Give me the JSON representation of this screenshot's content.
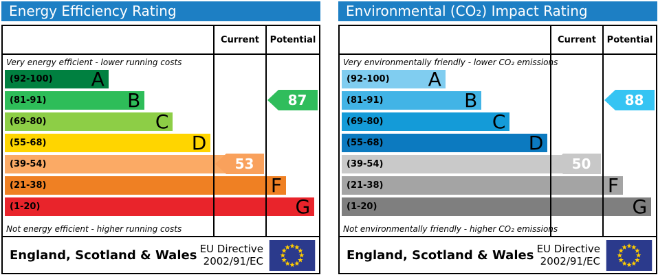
{
  "panels": [
    {
      "title": "Energy Efficiency Rating",
      "header_bg": "#1d7fc4",
      "columns": {
        "current": "Current",
        "potential": "Potential"
      },
      "top_label": "Very energy efficient - lower running costs",
      "bottom_label": "Not energy efficient - higher running costs",
      "bands": [
        {
          "range": "(92-100)",
          "letter": "A",
          "color": "#008040",
          "width_pct": 33
        },
        {
          "range": "(81-91)",
          "letter": "B",
          "color": "#2ebd59",
          "width_pct": 44.5
        },
        {
          "range": "(69-80)",
          "letter": "C",
          "color": "#8dce46",
          "width_pct": 53.5
        },
        {
          "range": "(55-68)",
          "letter": "D",
          "color": "#ffd500",
          "width_pct": 65.5
        },
        {
          "range": "(39-54)",
          "letter": "E",
          "color": "#fbaa65",
          "width_pct": 78
        },
        {
          "range": "(21-38)",
          "letter": "F",
          "color": "#ef8023",
          "width_pct": 89.5
        },
        {
          "range": "(1-20)",
          "letter": "G",
          "color": "#e9242b",
          "width_pct": 98.5
        }
      ],
      "current": {
        "value": "53",
        "band_index": 4,
        "color": "#f9a15c"
      },
      "potential": {
        "value": "87",
        "band_index": 1,
        "color": "#30bd5c"
      },
      "footer": {
        "region": "England, Scotland & Wales",
        "directive_line1": "EU Directive",
        "directive_line2": "2002/91/EC"
      }
    },
    {
      "title": "Environmental (CO₂) Impact Rating",
      "header_bg": "#1d7fc4",
      "columns": {
        "current": "Current",
        "potential": "Potential"
      },
      "top_label": "Very environmentally friendly - lower CO₂ emissions",
      "bottom_label": "Not environmentally friendly - higher CO₂ emissions",
      "bands": [
        {
          "range": "(92-100)",
          "letter": "A",
          "color": "#80cdf0",
          "width_pct": 33
        },
        {
          "range": "(81-91)",
          "letter": "B",
          "color": "#42b4e6",
          "width_pct": 44.5
        },
        {
          "range": "(69-80)",
          "letter": "C",
          "color": "#149bd8",
          "width_pct": 53.5
        },
        {
          "range": "(55-68)",
          "letter": "D",
          "color": "#0c7ac0",
          "width_pct": 65.5
        },
        {
          "range": "(39-54)",
          "letter": "E",
          "color": "#c9c9c9",
          "width_pct": 78
        },
        {
          "range": "(21-38)",
          "letter": "F",
          "color": "#a4a4a4",
          "width_pct": 89.5
        },
        {
          "range": "(1-20)",
          "letter": "G",
          "color": "#7f7f7f",
          "width_pct": 98.5
        }
      ],
      "current": {
        "value": "50",
        "band_index": 4,
        "color": "#c8c8c8"
      },
      "potential": {
        "value": "88",
        "band_index": 1,
        "color": "#35c4f3"
      },
      "footer": {
        "region": "England, Scotland & Wales",
        "directive_line1": "EU Directive",
        "directive_line2": "2002/91/EC"
      }
    }
  ],
  "flag": {
    "blue": "#2b3a8c",
    "star_yellow": "#ffcc00"
  },
  "chart_data": [
    {
      "type": "bar",
      "title": "Energy Efficiency Rating",
      "bands": [
        {
          "band": "A",
          "range": [
            92,
            100
          ]
        },
        {
          "band": "B",
          "range": [
            81,
            91
          ]
        },
        {
          "band": "C",
          "range": [
            69,
            80
          ]
        },
        {
          "band": "D",
          "range": [
            55,
            68
          ]
        },
        {
          "band": "E",
          "range": [
            39,
            54
          ]
        },
        {
          "band": "F",
          "range": [
            21,
            38
          ]
        },
        {
          "band": "G",
          "range": [
            1,
            20
          ]
        }
      ],
      "series": [
        {
          "name": "Current",
          "value": 53,
          "band": "E"
        },
        {
          "name": "Potential",
          "value": 87,
          "band": "B"
        }
      ],
      "top_annotation": "Very energy efficient - lower running costs",
      "bottom_annotation": "Not energy efficient - higher running costs"
    },
    {
      "type": "bar",
      "title": "Environmental (CO₂) Impact Rating",
      "bands": [
        {
          "band": "A",
          "range": [
            92,
            100
          ]
        },
        {
          "band": "B",
          "range": [
            81,
            91
          ]
        },
        {
          "band": "C",
          "range": [
            69,
            80
          ]
        },
        {
          "band": "D",
          "range": [
            55,
            68
          ]
        },
        {
          "band": "E",
          "range": [
            39,
            54
          ]
        },
        {
          "band": "F",
          "range": [
            21,
            38
          ]
        },
        {
          "band": "G",
          "range": [
            1,
            20
          ]
        }
      ],
      "series": [
        {
          "name": "Current",
          "value": 50,
          "band": "E"
        },
        {
          "name": "Potential",
          "value": 88,
          "band": "B"
        }
      ],
      "top_annotation": "Very environmentally friendly - lower CO₂ emissions",
      "bottom_annotation": "Not environmentally friendly - higher CO₂ emissions"
    }
  ]
}
